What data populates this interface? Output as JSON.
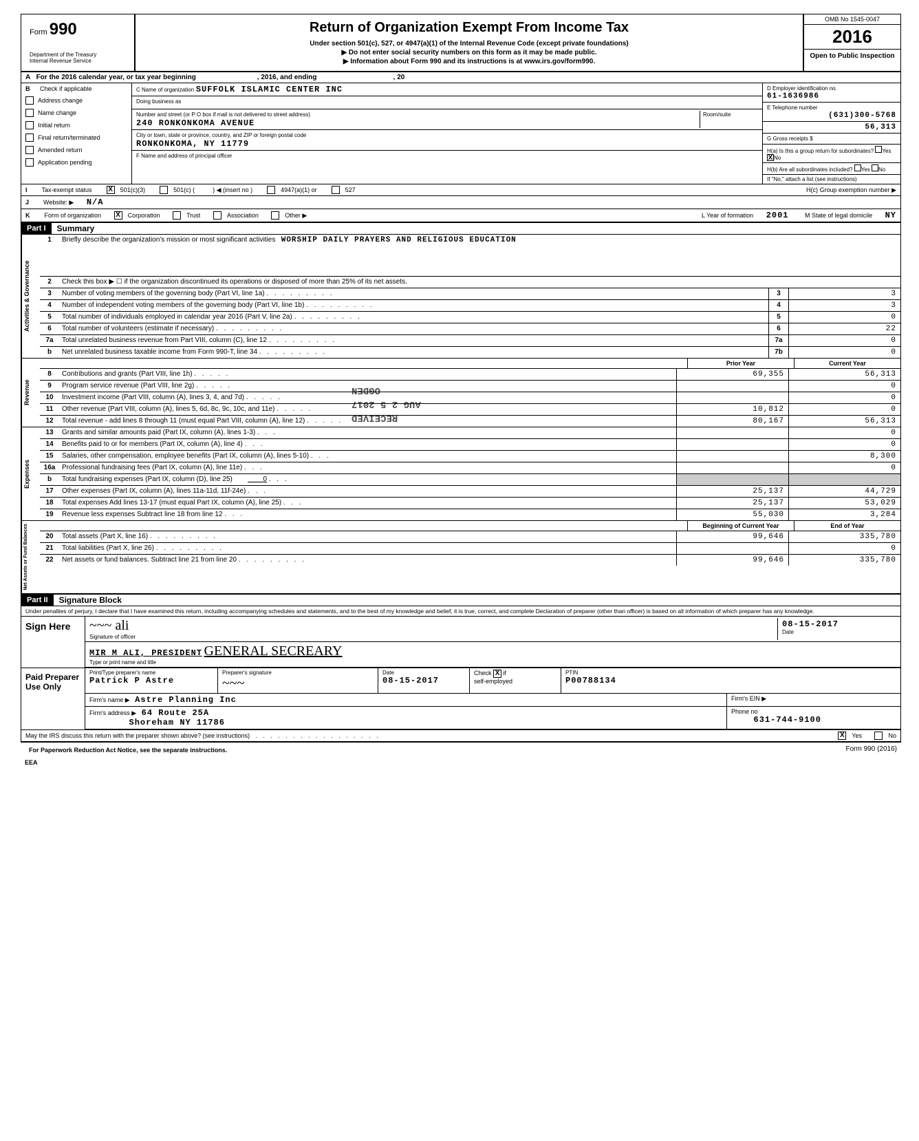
{
  "header": {
    "form_label": "Form",
    "form_number": "990",
    "dept1": "Department of the Treasury",
    "dept2": "Internal Revenue Service",
    "title": "Return of Organization Exempt From Income Tax",
    "subtitle1": "Under section 501(c), 527, or 4947(a)(1) of the Internal Revenue Code (except private foundations)",
    "subtitle2": "▶ Do not enter social security numbers on this form as it may be made public.",
    "subtitle3": "▶ Information about Form 990 and its instructions is at www.irs.gov/form990.",
    "omb": "OMB No 1545-0047",
    "year": "2016",
    "open_public": "Open to Public Inspection"
  },
  "row_a": {
    "text_pre": "For the 2016 calendar year, or tax year beginning",
    "text_mid": ", 2016, and ending",
    "text_end": ", 20"
  },
  "section_b": {
    "b_label": "Check if applicable",
    "checks": [
      "Address change",
      "Name change",
      "Initial return",
      "Final return/terminated",
      "Amended return",
      "Application pending"
    ],
    "c_name_label": "C  Name of organization",
    "c_name": "SUFFOLK ISLAMIC CENTER INC",
    "dba_label": "Doing business as",
    "addr_label": "Number and street (or P O  box if mail is not delivered to street address)",
    "room_label": "Room/suite",
    "addr": "240 RONKONKOMA AVENUE",
    "city_label": "City or town, state or province, country, and ZIP or foreign postal code",
    "city": "RONKONKOMA, NY 11779",
    "f_label": "F  Name and address of principal officer",
    "d_label": "D  Employer identification no.",
    "d_value": "61-1636986",
    "e_label": "E  Telephone number",
    "e_value": "(631)300-5768",
    "receipts_val": "56,313",
    "g_label": "G  Gross receipts $",
    "ha_label": "H(a) Is this a group return for subordinates?",
    "hb_label": "H(b) Are all subordinates included?",
    "yes": "Yes",
    "no": "No",
    "h_note": "If \"No,\" attach a list  (see instructions)",
    "hc_label": "H(c)  Group exemption number  ▶"
  },
  "row_i": {
    "letter": "I",
    "label": "Tax-exempt status",
    "opt1": "501(c)(3)",
    "opt2": "501(c) (",
    "opt2b": ")  ◀ (insert no )",
    "opt3": "4947(a)(1) or",
    "opt4": "527"
  },
  "row_j": {
    "letter": "J",
    "label": "Website: ▶",
    "value": "N/A"
  },
  "row_k": {
    "letter": "K",
    "label": "Form of organization",
    "opt1": "Corporation",
    "opt2": "Trust",
    "opt3": "Association",
    "opt4": "Other ▶",
    "l_label": "L  Year of formation",
    "l_value": "2001",
    "m_label": "M  State of legal domicile",
    "m_value": "NY"
  },
  "part1": {
    "header": "Part I",
    "title": "Summary",
    "side_gov": "Activities & Governance",
    "side_rev": "Revenue",
    "side_exp": "Expenses",
    "side_net": "Net Assets or Fund Balances",
    "line1_label": "Briefly describe the organization's mission or most significant activities",
    "line1_value": "WORSHIP DAILY PRAYERS AND RELIGIOUS EDUCATION",
    "line2": "Check this box ▶ ☐ if the organization discontinued its operations or disposed of more than 25% of its net assets.",
    "lines_gov": [
      {
        "n": "3",
        "desc": "Number of voting members of the governing body (Part VI, line 1a)",
        "box": "3",
        "val": "3"
      },
      {
        "n": "4",
        "desc": "Number of independent voting members of the governing body (Part VI, line 1b)",
        "box": "4",
        "val": "3"
      },
      {
        "n": "5",
        "desc": "Total number of individuals employed in calendar year 2016 (Part V, line 2a)",
        "box": "5",
        "val": "0"
      },
      {
        "n": "6",
        "desc": "Total number of volunteers (estimate if necessary)",
        "box": "6",
        "val": "22"
      },
      {
        "n": "7a",
        "desc": "Total unrelated business revenue from Part VIII, column (C), line 12",
        "box": "7a",
        "val": "0"
      },
      {
        "n": "b",
        "desc": "Net unrelated business taxable income from Form 990-T, line 34",
        "box": "7b",
        "val": "0"
      }
    ],
    "col_prior": "Prior Year",
    "col_current": "Current Year",
    "lines_rev": [
      {
        "n": "8",
        "desc": "Contributions and grants (Part VIII, line 1h)",
        "prior": "69,355",
        "cur": "56,313"
      },
      {
        "n": "9",
        "desc": "Program service revenue (Part VIII, line 2g)",
        "prior": "",
        "cur": "0"
      },
      {
        "n": "10",
        "desc": "Investment income (Part VIII, column (A), lines 3, 4, and 7d)",
        "prior": "",
        "cur": "0"
      },
      {
        "n": "11",
        "desc": "Other revenue (Part VIII, column (A), lines 5, 6d, 8c, 9c, 10c, and 11e)",
        "prior": "10,812",
        "cur": "0"
      },
      {
        "n": "12",
        "desc": "Total revenue - add lines 8 through 11 (must equal Part VIII, column (A), line 12)",
        "prior": "80,167",
        "cur": "56,313"
      }
    ],
    "lines_exp": [
      {
        "n": "13",
        "desc": "Grants and similar amounts paid (Part IX, column (A), lines 1-3)",
        "prior": "",
        "cur": "0"
      },
      {
        "n": "14",
        "desc": "Benefits paid to or for members (Part IX, column (A), line 4)",
        "prior": "",
        "cur": "0"
      },
      {
        "n": "15",
        "desc": "Salaries, other compensation, employee benefits (Part IX, column (A), lines 5-10)",
        "prior": "",
        "cur": "8,300"
      },
      {
        "n": "16a",
        "desc": "Professional fundraising fees (Part IX, column (A), line 11e)",
        "prior": "",
        "cur": "0"
      },
      {
        "n": "b",
        "desc": "Total fundraising expenses (Part IX, column (D), line 25)",
        "prior": "",
        "cur": "",
        "inline": "0"
      },
      {
        "n": "17",
        "desc": "Other expenses (Part IX, column (A), lines 11a-11d, 11f-24e)",
        "prior": "25,137",
        "cur": "44,729"
      },
      {
        "n": "18",
        "desc": "Total expenses  Add lines 13-17 (must equal Part IX, column (A), line 25)",
        "prior": "25,137",
        "cur": "53,029"
      },
      {
        "n": "19",
        "desc": "Revenue less expenses  Subtract line 18 from line 12",
        "prior": "55,030",
        "cur": "3,284"
      }
    ],
    "col_begin": "Beginning of Current Year",
    "col_end": "End of Year",
    "lines_net": [
      {
        "n": "20",
        "desc": "Total assets (Part X, line 16)",
        "prior": "99,646",
        "cur": "335,780"
      },
      {
        "n": "21",
        "desc": "Total liabilities (Part X, line 26)",
        "prior": "",
        "cur": "0"
      },
      {
        "n": "22",
        "desc": "Net assets or fund balances. Subtract line 21 from line 20",
        "prior": "99,646",
        "cur": "335,780"
      }
    ],
    "stamp1": "RECEIVED",
    "stamp2": "AUG 2 5 2017",
    "stamp3": "OGDEN"
  },
  "part2": {
    "header": "Part II",
    "title": "Signature Block",
    "perjury": "Under penalties of perjury, I declare that I have examined this return, including accompanying schedules and statements, and to the best of my knowledge and belief, it is true, correct, and complete  Declaration of preparer (other than officer) is based on all information of which preparer has any knowledge.",
    "sign_here": "Sign Here",
    "sig_officer_label": "Signature of officer",
    "date_label": "Date",
    "sig_date": "08-15-2017",
    "name_title": "MIR M ALI, PRESIDENT",
    "name_title_hand": "GENERAL SECREARY",
    "type_label": "Type or print name and title",
    "paid_prep": "Paid Preparer Use Only",
    "prep_name_label": "Print/Type preparer's name",
    "prep_name": "Patrick P Astre",
    "prep_sig_label": "Preparer's signature",
    "prep_date": "08-15-2017",
    "check_label": "Check",
    "if_label": "if",
    "self_emp": "self-employed",
    "ptin_label": "PTIN",
    "ptin": "P00788134",
    "firm_name_label": "Firm's name    ▶",
    "firm_name": "Astre Planning Inc",
    "firm_ein_label": "Firm's EIN ▶",
    "firm_addr_label": "Firm's address ▶",
    "firm_addr1": "64 Route 25A",
    "firm_addr2": "Shoreham NY 11786",
    "phone_label": "Phone no",
    "phone": "631-744-9100",
    "discuss": "May the IRS discuss this return with the preparer shown above? (see instructions)",
    "paperwork": "For Paperwork Reduction Act Notice, see the separate instructions.",
    "form_foot": "Form 990 (2016)",
    "eea": "EEA"
  }
}
